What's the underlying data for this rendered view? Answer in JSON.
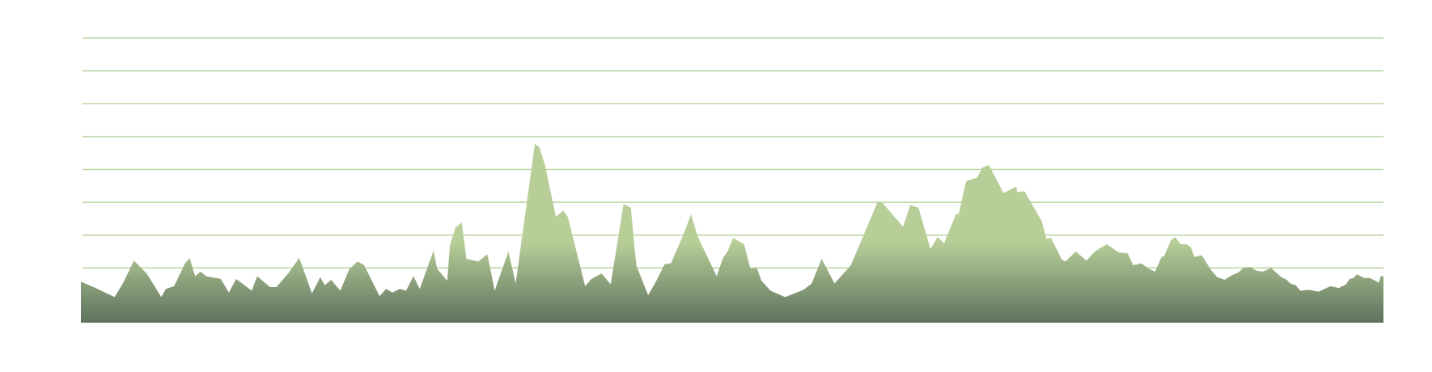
{
  "chart_data": {
    "type": "area",
    "x": [
      89,
      105,
      126,
      136,
      147,
      161,
      177,
      182,
      191,
      203,
      208,
      214,
      220,
      226,
      242,
      251,
      259,
      276,
      282,
      296,
      303,
      316,
      328,
      342,
      351,
      356,
      363,
      373,
      383,
      392,
      399,
      416,
      423,
      430,
      438,
      445,
      453,
      460,
      475,
      479,
      490,
      493,
      499,
      506,
      511,
      524,
      534,
      542,
      557,
      565,
      586,
      591,
      597,
      609,
      617,
      622,
      641,
      648,
      659,
      669,
      683,
      691,
      697,
      710,
      719,
      728,
      735,
      750,
      757,
      764,
      785,
      792,
      797,
      803,
      815,
      822,
      829,
      834,
      844,
      860,
      880,
      889,
      900,
      914,
      932,
      961,
      966,
      989,
      997,
      1006,
      1019,
      1027,
      1034,
      1047,
      1050,
      1058,
      1070,
      1076,
      1083,
      1099,
      1113,
      1114,
      1122,
      1141,
      1146,
      1151,
      1163,
      1167,
      1178,
      1190,
      1197,
      1202,
      1212,
      1225,
      1235,
      1241,
      1250,
      1258,
      1265,
      1272,
      1275,
      1282,
      1287,
      1293,
      1299,
      1304,
      1308,
      1316,
      1326,
      1333,
      1341,
      1349,
      1356,
      1362,
      1369,
      1376,
      1383,
      1392,
      1403,
      1409,
      1413,
      1419,
      1424,
      1433,
      1444,
      1457,
      1466,
      1474,
      1478,
      1482,
      1486,
      1494,
      1500,
      1510,
      1512,
      1515
    ],
    "values": [
      45,
      38,
      28,
      45,
      68,
      54,
      28,
      37,
      40,
      65,
      71,
      51,
      56,
      51,
      48,
      33,
      48,
      35,
      51,
      39,
      39,
      54,
      71,
      32,
      50,
      41,
      47,
      35,
      59,
      67,
      63,
      29,
      37,
      33,
      37,
      35,
      51,
      37,
      79,
      59,
      46,
      85,
      104,
      110,
      70,
      67,
      75,
      35,
      78,
      43,
      196,
      192,
      173,
      116,
      123,
      116,
      40,
      48,
      54,
      42,
      130,
      126,
      63,
      30,
      46,
      64,
      65,
      100,
      119,
      95,
      51,
      71,
      78,
      93,
      86,
      59,
      60,
      46,
      35,
      28,
      36,
      43,
      70,
      43,
      63,
      132,
      132,
      105,
      129,
      126,
      81,
      94,
      87,
      119,
      119,
      155,
      159,
      170,
      173,
      142,
      149,
      143,
      144,
      111,
      92,
      93,
      69,
      67,
      78,
      68,
      76,
      80,
      86,
      77,
      76,
      63,
      65,
      59,
      56,
      72,
      73,
      90,
      94,
      86,
      86,
      83,
      72,
      74,
      58,
      50,
      47,
      52,
      55,
      60,
      61,
      57,
      56,
      60,
      50,
      47,
      43,
      41,
      35,
      36,
      34,
      40,
      38,
      42,
      48,
      49,
      53,
      49,
      49,
      44,
      51,
      51
    ],
    "xlim": [
      89,
      1515
    ],
    "ylim": [
      0,
      312
    ],
    "yticks": [
      60,
      96,
      132,
      168,
      204,
      240,
      276,
      312
    ],
    "grid": true,
    "grid_color": "#b9d59f",
    "gradient": [
      "#b7ce98",
      "#5e725e"
    ]
  }
}
